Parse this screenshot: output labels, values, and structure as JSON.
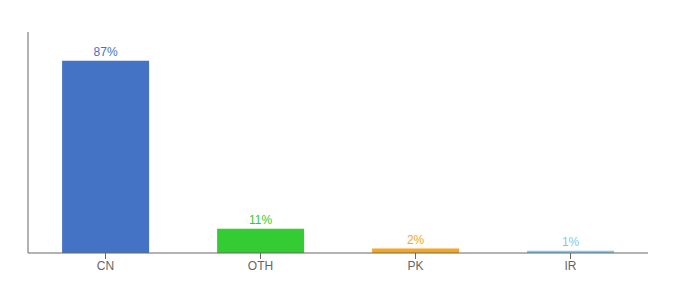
{
  "chart_data": {
    "type": "bar",
    "categories": [
      "CN",
      "OTH",
      "PK",
      "IR"
    ],
    "values": [
      87,
      11,
      2,
      1
    ],
    "value_labels": [
      "87%",
      "11%",
      "2%",
      "1%"
    ],
    "data_labels": true,
    "colors": [
      "#4472c4",
      "#33cc33",
      "#f5a623",
      "#85c8ea"
    ],
    "ylim": [
      0,
      100
    ],
    "grid": false,
    "tick_labels": "x"
  }
}
